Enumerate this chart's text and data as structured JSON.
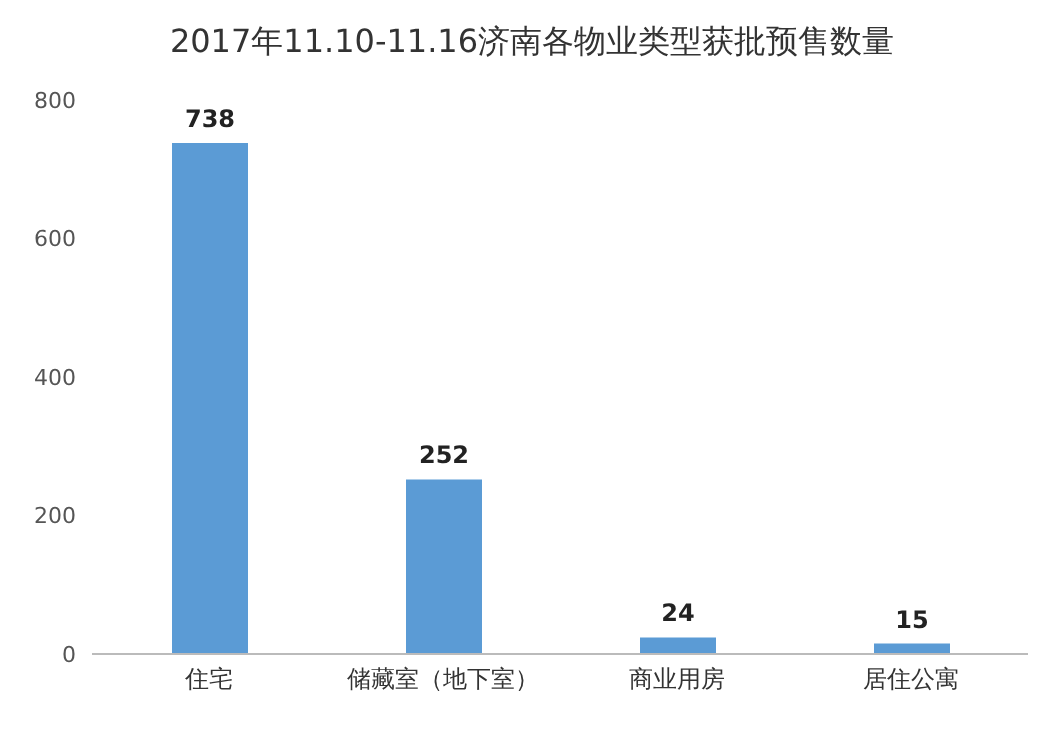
{
  "chart_data": {
    "type": "bar",
    "title": "2017年11.10-11.16济南各物业类型获批预售数量",
    "categories": [
      "住宅",
      "储藏室（地下室）",
      "商业用房",
      "居住公寓"
    ],
    "values": [
      738,
      252,
      24,
      15
    ],
    "color": "#5b9bd5",
    "ylim": [
      0,
      800
    ],
    "yticks": [
      0,
      200,
      400,
      600,
      800
    ],
    "data_labels": true,
    "grid": false,
    "legend": false
  }
}
